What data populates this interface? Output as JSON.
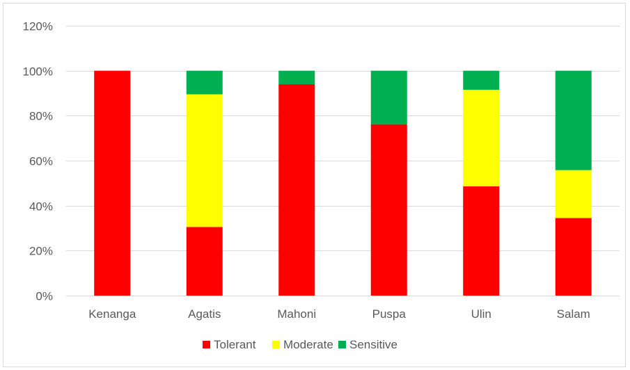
{
  "chart_data": {
    "type": "bar",
    "stacked": true,
    "categories": [
      "Kenanga",
      "Agatis",
      "Mahoni",
      "Puspa",
      "Ulin",
      "Salam"
    ],
    "series": [
      {
        "name": "Tolerant",
        "color": "#ff0000",
        "values": [
          100,
          30.5,
          94,
          76.2,
          48.6,
          34.5
        ]
      },
      {
        "name": "Moderate",
        "color": "#ffff00",
        "values": [
          0,
          59,
          0,
          0,
          42.9,
          21.3
        ]
      },
      {
        "name": "Sensitive",
        "color": "#00b050",
        "values": [
          0,
          10.5,
          6,
          23.8,
          8.5,
          44.2
        ]
      }
    ],
    "ylim": [
      0,
      120
    ],
    "yticks": [
      "0%",
      "20%",
      "40%",
      "60%",
      "80%",
      "100%",
      "120%"
    ],
    "grid": true,
    "legend_position": "bottom",
    "title": "",
    "xlabel": "",
    "ylabel": ""
  }
}
